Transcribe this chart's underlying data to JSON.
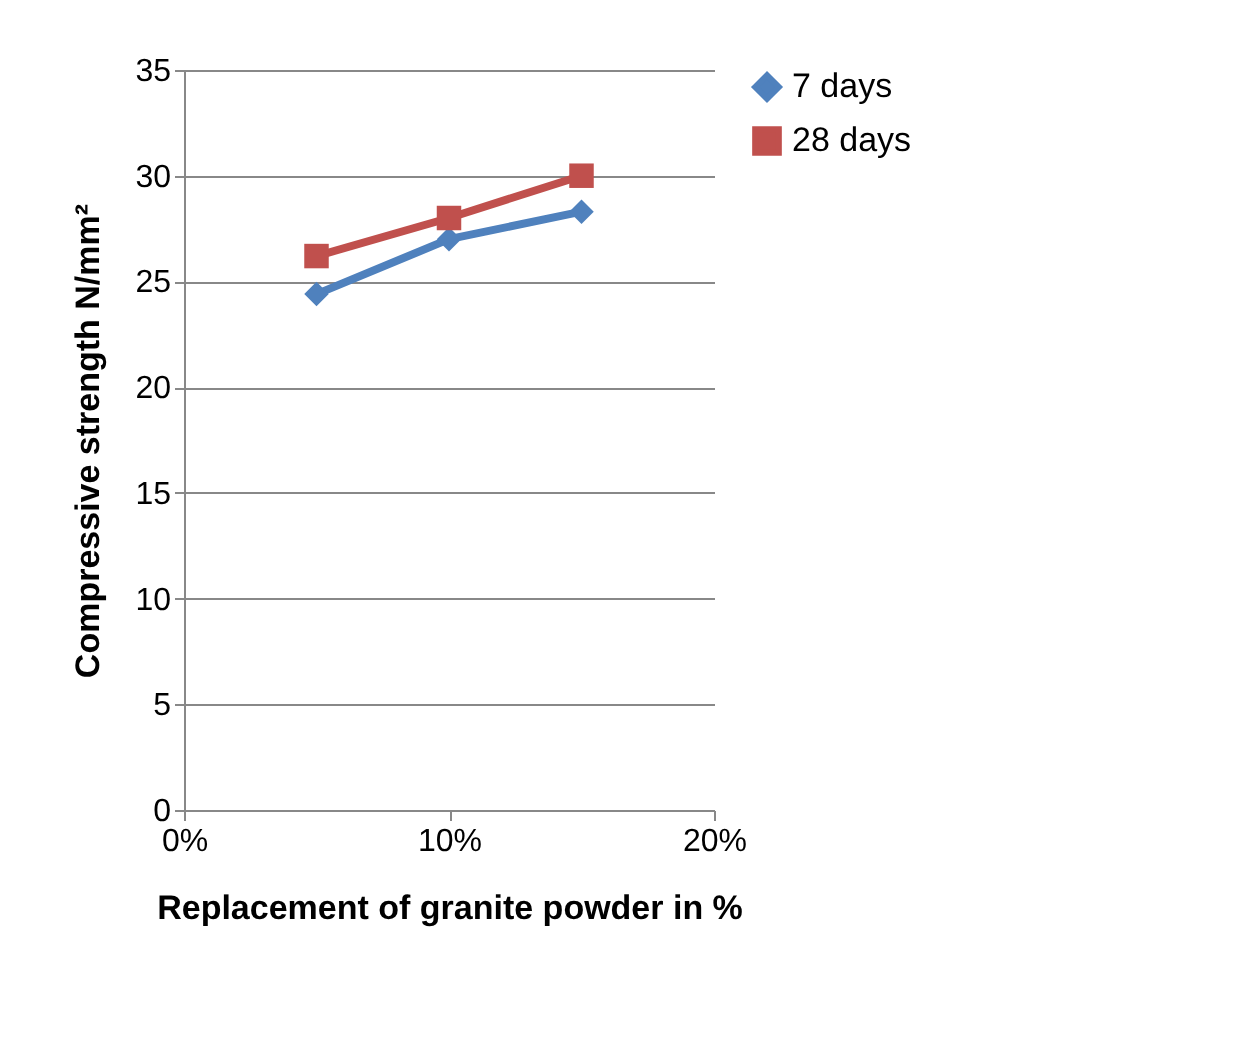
{
  "chart_data": {
    "type": "line",
    "x": [
      5,
      10,
      15
    ],
    "series": [
      {
        "name": "7 days",
        "color": "#4f81bd",
        "marker": "diamond",
        "values": [
          24.4,
          27,
          28.3
        ]
      },
      {
        "name": "28 days",
        "color": "#c0504d",
        "marker": "square",
        "values": [
          26.2,
          28,
          30
        ]
      }
    ],
    "xlabel": "Replacement  of granite powder in %",
    "ylabel": "Compressive strength N/mm²",
    "xlim": [
      0,
      20
    ],
    "xticks": [
      {
        "value": 0,
        "label": "0%"
      },
      {
        "value": 10,
        "label": "10%"
      },
      {
        "value": 20,
        "label": "20%"
      }
    ],
    "ylim": [
      0,
      35
    ],
    "yticks": [
      0,
      5,
      10,
      15,
      20,
      25,
      30,
      35
    ],
    "grid": "y",
    "legend": "right",
    "line_style": "solid"
  }
}
